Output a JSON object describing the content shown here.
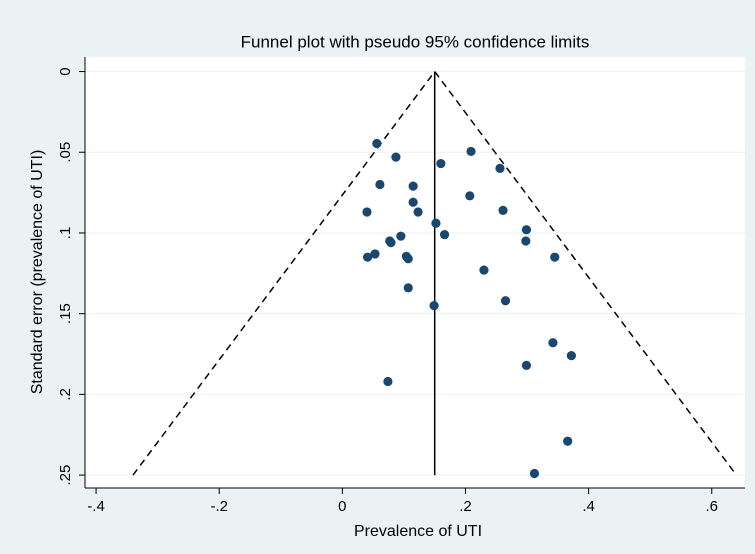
{
  "chart_data": {
    "type": "scatter",
    "title": "Funnel plot with pseudo 95% confidence limits",
    "x_label": "Prevalence of UTI",
    "y_label": "Standard error (prevalence of UTI)",
    "color": "#1a476f",
    "x": [
      0.056,
      0.087,
      0.209,
      0.16,
      0.256,
      0.061,
      0.115,
      0.207,
      0.115,
      0.04,
      0.123,
      0.261,
      0.152,
      0.299,
      0.166,
      0.095,
      0.298,
      0.077,
      0.079,
      0.053,
      0.041,
      0.104,
      0.107,
      0.345,
      0.23,
      0.107,
      0.265,
      0.149,
      0.342,
      0.372,
      0.299,
      0.074,
      0.366,
      0.312
    ],
    "values": [
      0.0446,
      0.053,
      0.0495,
      0.057,
      0.06,
      0.07,
      0.071,
      0.077,
      0.081,
      0.087,
      0.087,
      0.086,
      0.094,
      0.098,
      0.101,
      0.102,
      0.105,
      0.105,
      0.106,
      0.113,
      0.115,
      0.1145,
      0.116,
      0.115,
      0.123,
      0.134,
      0.142,
      0.145,
      0.168,
      0.176,
      0.182,
      0.192,
      0.229,
      0.249
    ],
    "pooled_estimate": 0.15,
    "confidence_limits": {
      "x": [
        -0.34,
        0.15,
        0.64
      ],
      "y": [
        0.25,
        0,
        0.25
      ]
    },
    "xlim": [
      -0.418,
      0.654
    ],
    "ylim": [
      -0.009,
      0.258
    ],
    "y_reversed": true,
    "grid": true,
    "xticks": [
      {
        "value": -0.4,
        "label": "-.4"
      },
      {
        "value": -0.2,
        "label": "-.2"
      },
      0,
      {
        "value": 0.2,
        "label": ".2"
      },
      {
        "value": 0.4,
        "label": ".4"
      },
      {
        "value": 0.6,
        "label": ".6"
      }
    ],
    "yticks": [
      0,
      {
        "value": 0.05,
        "label": ".05"
      },
      {
        "value": 0.1,
        "label": ".1"
      },
      {
        "value": 0.15,
        "label": ".15"
      },
      {
        "value": 0.2,
        "label": ".2"
      },
      {
        "value": 0.25,
        "label": ".25"
      }
    ]
  }
}
